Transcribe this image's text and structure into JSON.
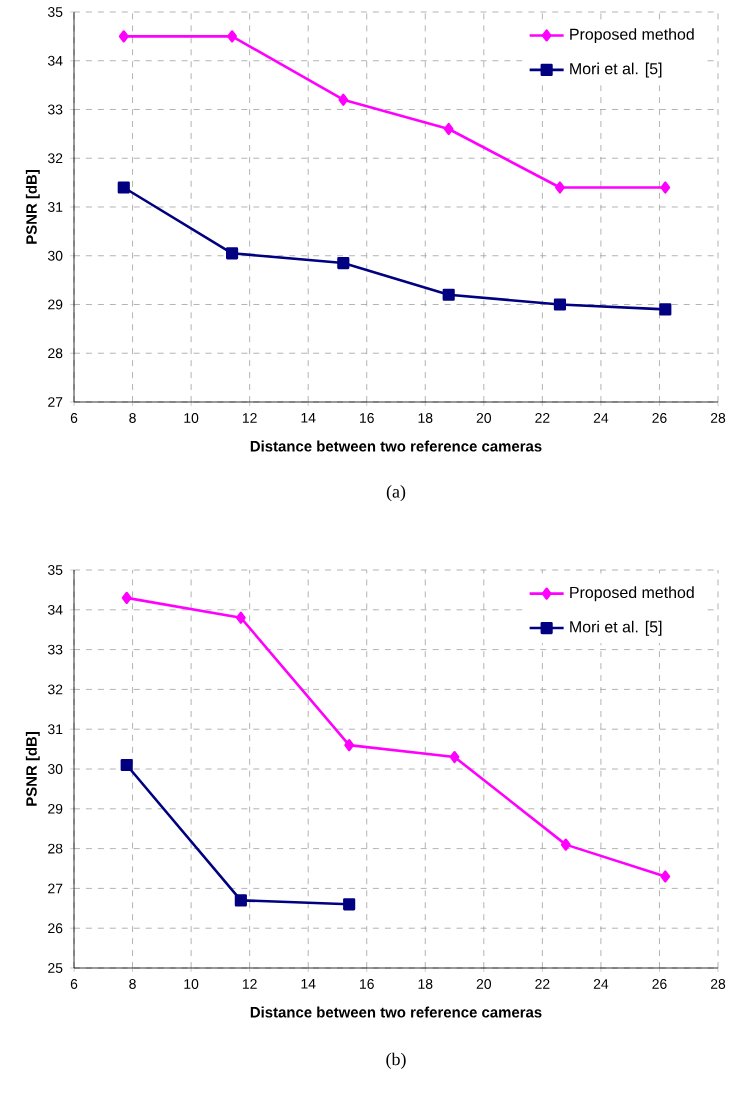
{
  "chart_data": [
    {
      "type": "line",
      "xlabel": "Distance between two reference cameras",
      "ylabel": "PSNR [dB]",
      "xlim": [
        6,
        28
      ],
      "xticks": [
        6,
        8,
        10,
        12,
        14,
        16,
        18,
        20,
        22,
        24,
        26,
        28
      ],
      "ylim": [
        27,
        35
      ],
      "yticks": [
        27,
        28,
        29,
        30,
        31,
        32,
        33,
        34,
        35
      ],
      "grid": true,
      "legend": "top right",
      "line_style": "solid",
      "annotations": [
        "(a)"
      ],
      "series": [
        {
          "name": "Proposed method",
          "color": "#ff00ff",
          "marker": "diamond",
          "x": [
            7.7,
            11.4,
            15.2,
            18.8,
            22.6,
            26.2
          ],
          "values": [
            34.5,
            34.5,
            33.2,
            32.6,
            31.4,
            31.4
          ]
        },
        {
          "name": "Mori et al. [5]",
          "color": "#000080",
          "marker": "square",
          "x": [
            7.7,
            11.4,
            15.2,
            18.8,
            22.6,
            26.2
          ],
          "values": [
            31.4,
            30.05,
            29.85,
            29.2,
            29.0,
            28.9
          ]
        }
      ]
    },
    {
      "type": "line",
      "xlabel": "Distance between two reference cameras",
      "ylabel": "PSNR [dB]",
      "xlim": [
        6,
        28
      ],
      "xticks": [
        6,
        8,
        10,
        12,
        14,
        16,
        18,
        20,
        22,
        24,
        26,
        28
      ],
      "ylim": [
        25,
        35
      ],
      "yticks": [
        25,
        26,
        27,
        28,
        29,
        30,
        31,
        32,
        33,
        34,
        35
      ],
      "grid": true,
      "legend": "top right",
      "line_style": "solid",
      "annotations": [
        "(b)"
      ],
      "series": [
        {
          "name": "Proposed method",
          "color": "#ff00ff",
          "marker": "diamond",
          "x": [
            7.8,
            11.7,
            15.4,
            19.0,
            22.8,
            26.2
          ],
          "values": [
            34.3,
            33.8,
            30.6,
            30.3,
            28.1,
            27.3
          ]
        },
        {
          "name": "Mori et al. [5]",
          "color": "#000080",
          "marker": "square",
          "x": [
            7.8,
            11.7,
            15.4
          ],
          "values": [
            30.1,
            26.7,
            26.6
          ]
        }
      ]
    }
  ]
}
